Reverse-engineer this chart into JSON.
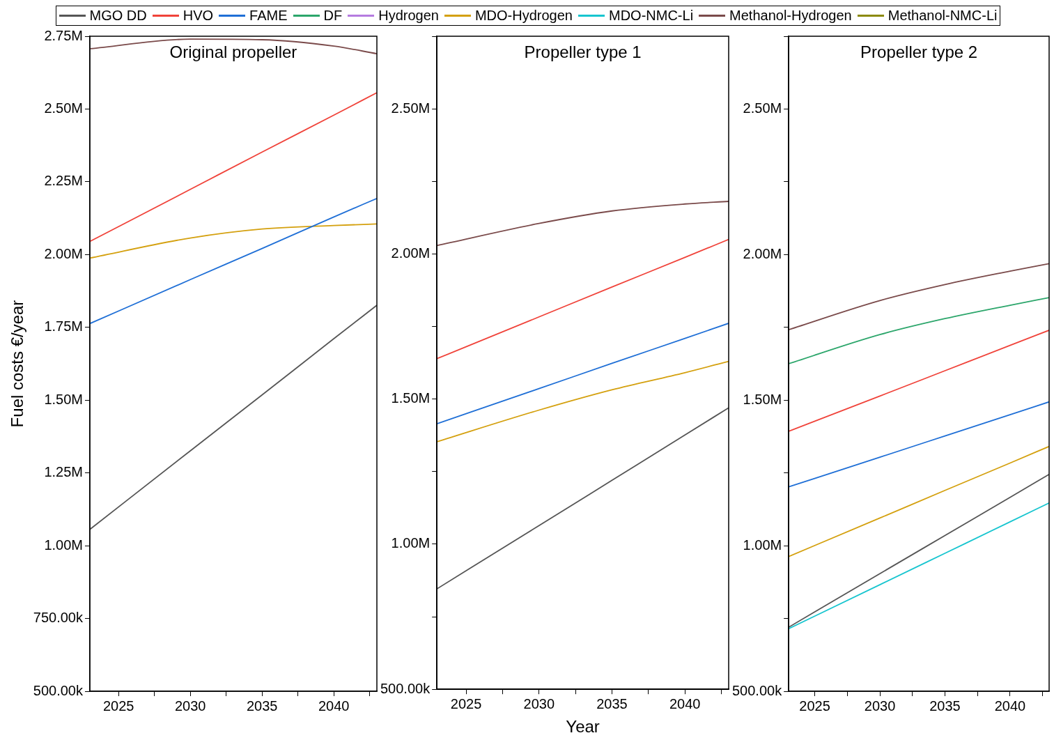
{
  "chart_data": [
    {
      "type": "line",
      "title": "Original propeller",
      "ylabel": "Fuel costs €/year",
      "legend": "top",
      "marker": "none",
      "grid": false,
      "x": [
        2023,
        2030,
        2035,
        2040,
        2043
      ],
      "xlim": [
        2023,
        2043
      ],
      "xticks": [
        2025,
        {
          "value": 2027.5,
          "label": null
        },
        2030,
        {
          "value": 2032.5,
          "label": null
        },
        2035,
        {
          "value": 2037.5,
          "label": null
        },
        2040,
        {
          "value": 2042.5,
          "label": null
        }
      ],
      "ylim": [
        500000,
        2750000
      ],
      "yticks": [
        {
          "value": 500000,
          "label": "500.00k"
        },
        {
          "value": 750000,
          "label": "750.00k"
        },
        {
          "value": 1000000,
          "label": "1.00M"
        },
        {
          "value": 1250000,
          "label": "1.25M"
        },
        {
          "value": 1500000,
          "label": "1.50M"
        },
        {
          "value": 1750000,
          "label": "1.75M"
        },
        {
          "value": 2000000,
          "label": "2.00M"
        },
        {
          "value": 2250000,
          "label": "2.25M"
        },
        {
          "value": 2500000,
          "label": "2.50M"
        },
        {
          "value": 2750000,
          "label": "2.75M"
        }
      ],
      "series": [
        {
          "name": "MGO DD",
          "color": "#555555",
          "values": [
            1056000,
            1326000,
            1518000,
            1711000,
            1826000
          ]
        },
        {
          "name": "HVO",
          "color": "#f0433a",
          "values": [
            2045000,
            2224000,
            2352000,
            2479000,
            2556000
          ]
        },
        {
          "name": "FAME",
          "color": "#1f6fd6",
          "values": [
            1763000,
            1914000,
            2021000,
            2129000,
            2193000
          ]
        },
        {
          "name": "DF",
          "color": "#2ca66b",
          "values": [
            null,
            null,
            null,
            null,
            null
          ]
        },
        {
          "name": "Hydrogen",
          "color": "#b57be0",
          "values": [
            null,
            null,
            null,
            null,
            null
          ]
        },
        {
          "name": "MDO-Hydrogen",
          "color": "#d4a00e",
          "values": [
            1988000,
            2057000,
            2088000,
            2100000,
            2105000
          ]
        },
        {
          "name": "MDO-NMC-Li",
          "color": "#17c5cf",
          "values": [
            null,
            null,
            null,
            null,
            null
          ]
        },
        {
          "name": "Methanol-Hydrogen",
          "color": "#7a4a4a",
          "values": [
            2707000,
            2740000,
            2738000,
            2716000,
            2690000
          ]
        },
        {
          "name": "Methanol-NMC-Li",
          "color": "#8c8a0a",
          "values": [
            null,
            null,
            null,
            null,
            null
          ]
        }
      ]
    },
    {
      "type": "line",
      "title": "Propeller type 1",
      "xlabel": "Year",
      "marker": "none",
      "grid": false,
      "x": [
        2023,
        2030,
        2035,
        2040,
        2043
      ],
      "xlim": [
        2023,
        2043
      ],
      "xticks": [
        2025,
        {
          "value": 2027.5,
          "label": null
        },
        2030,
        {
          "value": 2032.5,
          "label": null
        },
        2035,
        {
          "value": 2037.5,
          "label": null
        },
        2040,
        {
          "value": 2042.5,
          "label": null
        }
      ],
      "ylim": [
        500000,
        2750000
      ],
      "yticks": [
        {
          "value": 500000,
          "label": "500.00k"
        },
        {
          "value": 750000,
          "label": null
        },
        {
          "value": 1000000,
          "label": "1.00M"
        },
        {
          "value": 1250000,
          "label": null
        },
        {
          "value": 1500000,
          "label": "1.50M"
        },
        {
          "value": 1750000,
          "label": null
        },
        {
          "value": 2000000,
          "label": "2.00M"
        },
        {
          "value": 2250000,
          "label": null
        },
        {
          "value": 2500000,
          "label": "2.50M"
        },
        {
          "value": 2750000,
          "label": null
        }
      ],
      "series": [
        {
          "color": "#555555",
          "values": [
            846000,
            1064000,
            1220000,
            1376000,
            1470000
          ]
        },
        {
          "color": "#f0433a",
          "values": [
            1639000,
            1783000,
            1886000,
            1988000,
            2050000
          ]
        },
        {
          "color": "#1f6fd6",
          "values": [
            1415000,
            1536000,
            1623000,
            1709000,
            1761000
          ]
        },
        {
          "color": "#d4a00e",
          "values": [
            1353000,
            1462000,
            1532000,
            1591000,
            1630000
          ]
        },
        {
          "color": "#7a4a4a",
          "values": [
            2029000,
            2105000,
            2148000,
            2172000,
            2181000
          ]
        }
      ]
    },
    {
      "type": "line",
      "title": "Propeller type 2",
      "marker": "none",
      "grid": false,
      "x": [
        2023,
        2030,
        2035,
        2040,
        2043
      ],
      "xlim": [
        2023,
        2043
      ],
      "xticks": [
        2025,
        {
          "value": 2027.5,
          "label": null
        },
        2030,
        {
          "value": 2032.5,
          "label": null
        },
        2035,
        {
          "value": 2037.5,
          "label": null
        },
        2040,
        {
          "value": 2042.5,
          "label": null
        }
      ],
      "ylim": [
        500000,
        2750000
      ],
      "yticks": [
        {
          "value": 500000,
          "label": "500.00k"
        },
        {
          "value": 750000,
          "label": null
        },
        {
          "value": 1000000,
          "label": "1.00M"
        },
        {
          "value": 1250000,
          "label": null
        },
        {
          "value": 1500000,
          "label": "1.50M"
        },
        {
          "value": 1750000,
          "label": null
        },
        {
          "value": 2000000,
          "label": "2.00M"
        },
        {
          "value": 2250000,
          "label": null
        },
        {
          "value": 2500000,
          "label": "2.50M"
        },
        {
          "value": 2750000,
          "label": null
        }
      ],
      "series": [
        {
          "color": "#555555",
          "values": [
            720000,
            904000,
            1035000,
            1166000,
            1245000
          ]
        },
        {
          "color": "#f0433a",
          "values": [
            1393000,
            1514000,
            1601000,
            1688000,
            1740000
          ]
        },
        {
          "color": "#1f6fd6",
          "values": [
            1202000,
            1304000,
            1377000,
            1450000,
            1494000
          ]
        },
        {
          "color": "#2ca66b",
          "values": [
            1625000,
            1725000,
            1780000,
            1826000,
            1852000
          ]
        },
        {
          "color": "#d4a00e",
          "values": [
            963000,
            1095000,
            1190000,
            1284000,
            1341000
          ]
        },
        {
          "color": "#17c5cf",
          "values": [
            715000,
            866000,
            974000,
            1082000,
            1147000
          ]
        },
        {
          "color": "#7a4a4a",
          "values": [
            1742000,
            1842000,
            1897000,
            1943000,
            1969000
          ]
        }
      ]
    }
  ]
}
